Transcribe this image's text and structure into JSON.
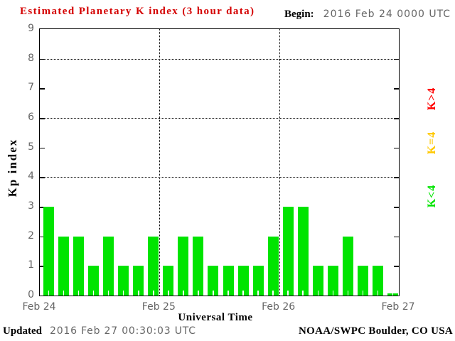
{
  "header": {
    "title": "Estimated Planetary K index (3 hour data)",
    "begin_label": "Begin:",
    "begin_value": "2016 Feb 24 0000 UTC"
  },
  "colors": {
    "title_red": "#d40000",
    "bar_green": "#00e400",
    "threshold_yellow": "#ffc800",
    "threshold_red": "#ff0000",
    "muted_text": "#666666",
    "axis_black": "#000000"
  },
  "legend": {
    "items": [
      {
        "label": "K>4",
        "color": "#ff0000"
      },
      {
        "label": "K=4",
        "color": "#ffc800"
      },
      {
        "label": "K<4",
        "color": "#00e400"
      }
    ]
  },
  "footer": {
    "updated_label": "Updated",
    "updated_value": "2016 Feb 27 00:30:03 UTC",
    "credit": "NOAA/SWPC Boulder, CO USA"
  },
  "chart_data": {
    "type": "bar",
    "title": "Estimated Planetary K index (3 hour data)",
    "xlabel": "Universal Time",
    "ylabel": "Kp index",
    "ylim": [
      0,
      9
    ],
    "y_ticks": [
      0,
      1,
      2,
      3,
      4,
      5,
      6,
      7,
      8,
      9
    ],
    "dotted_gridlines_at": [
      4,
      6,
      8
    ],
    "day_boundaries": [
      "Feb 24",
      "Feb 25",
      "Feb 26",
      "Feb 27"
    ],
    "hours_per_bar": 3,
    "bars_per_day": 8,
    "series": [
      {
        "name": "Kp 3-hour",
        "day": "Feb 24",
        "values": [
          3,
          2,
          2,
          1,
          2,
          1,
          1,
          2
        ]
      },
      {
        "name": "Kp 3-hour",
        "day": "Feb 25",
        "values": [
          1,
          2,
          2,
          1,
          1,
          1,
          1,
          2
        ]
      },
      {
        "name": "Kp 3-hour",
        "day": "Feb 26",
        "values": [
          3,
          3,
          1,
          1,
          2,
          1,
          1,
          0
        ]
      }
    ],
    "color_rule": {
      "below_4": "#00e400",
      "equal_4": "#ffc800",
      "above_4": "#ff0000"
    },
    "legend_position": "right",
    "grid": "dotted horizontal lines at Kp 4,6,8; dotted vertical lines at day boundaries"
  }
}
